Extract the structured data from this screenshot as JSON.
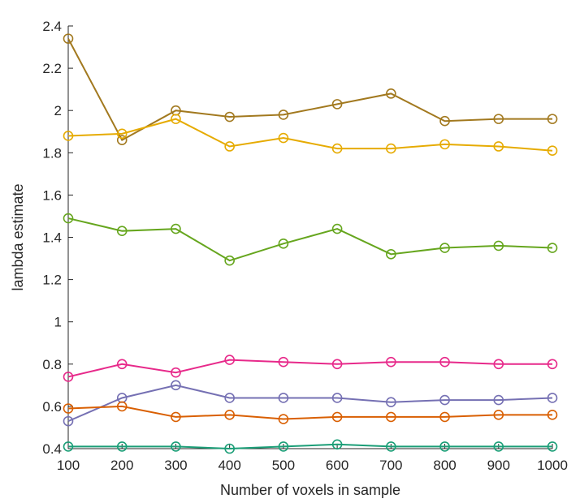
{
  "chart_data": {
    "type": "line",
    "title": "",
    "xlabel": "Number of voxels in sample",
    "ylabel": "lambda estimate",
    "x": [
      100,
      200,
      300,
      400,
      500,
      600,
      700,
      800,
      900,
      1000
    ],
    "xlim": [
      100,
      1000
    ],
    "ylim": [
      0.4,
      2.4
    ],
    "xticks": [
      "100",
      "200",
      "300",
      "400",
      "500",
      "600",
      "700",
      "800",
      "900",
      "1000"
    ],
    "yticks": [
      "0.4",
      "0.6",
      "0.8",
      "1",
      "1.2",
      "1.4",
      "1.6",
      "1.8",
      "2",
      "2.2",
      "2.4"
    ],
    "grid": false,
    "marker": "circle",
    "series": [
      {
        "color": "#a2791f",
        "values": [
          2.34,
          1.86,
          2.0,
          1.97,
          1.98,
          2.03,
          2.08,
          1.95,
          1.96,
          1.96
        ]
      },
      {
        "color": "#e6ab02",
        "values": [
          1.88,
          1.89,
          1.96,
          1.83,
          1.87,
          1.82,
          1.82,
          1.84,
          1.83,
          1.81
        ]
      },
      {
        "color": "#66a61e",
        "values": [
          1.49,
          1.43,
          1.44,
          1.29,
          1.37,
          1.44,
          1.32,
          1.35,
          1.36,
          1.35
        ]
      },
      {
        "color": "#e7298a",
        "values": [
          0.74,
          0.8,
          0.76,
          0.82,
          0.81,
          0.8,
          0.81,
          0.81,
          0.8,
          0.8
        ]
      },
      {
        "color": "#7570b3",
        "values": [
          0.53,
          0.64,
          0.7,
          0.64,
          0.64,
          0.64,
          0.62,
          0.63,
          0.63,
          0.64
        ]
      },
      {
        "color": "#d95f02",
        "values": [
          0.59,
          0.6,
          0.55,
          0.56,
          0.54,
          0.55,
          0.55,
          0.55,
          0.56,
          0.56
        ]
      },
      {
        "color": "#1b9e77",
        "values": [
          0.41,
          0.41,
          0.41,
          0.4,
          0.41,
          0.42,
          0.41,
          0.41,
          0.41,
          0.41
        ]
      }
    ]
  }
}
